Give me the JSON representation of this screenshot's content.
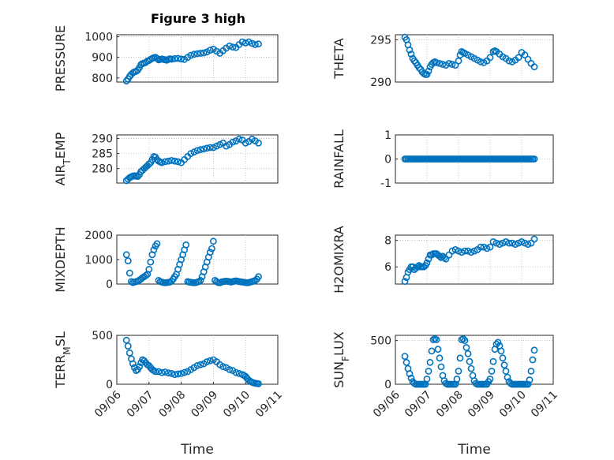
{
  "title": "Figure 3 high",
  "marker_color": "#0072BD",
  "chart_data": [
    {
      "type": "scatter",
      "ylabel": "PRESSURE",
      "xlabel": "",
      "ylim": [
        780,
        1010
      ],
      "yticks": [
        {
          "v": 800,
          "l": "800"
        },
        {
          "v": 900,
          "l": "900"
        },
        {
          "v": 1000,
          "l": "1000"
        }
      ],
      "xlim": [
        0,
        5
      ],
      "x": [
        0.3,
        0.35,
        0.4,
        0.45,
        0.5,
        0.55,
        0.6,
        0.65,
        0.7,
        0.75,
        0.8,
        0.85,
        0.9,
        0.95,
        1.0,
        1.05,
        1.1,
        1.15,
        1.2,
        1.25,
        1.3,
        1.35,
        1.4,
        1.45,
        1.5,
        1.55,
        1.6,
        1.65,
        1.7,
        1.8,
        1.9,
        2.0,
        2.1,
        2.2,
        2.3,
        2.4,
        2.5,
        2.6,
        2.7,
        2.8,
        2.9,
        3.0,
        3.1,
        3.2,
        3.3,
        3.4,
        3.5,
        3.6,
        3.7,
        3.8,
        3.9,
        4.0,
        4.1,
        4.2,
        4.3,
        4.4
      ],
      "y": [
        785,
        795,
        808,
        818,
        825,
        830,
        832,
        838,
        850,
        865,
        870,
        872,
        876,
        882,
        885,
        890,
        895,
        898,
        900,
        895,
        888,
        890,
        892,
        890,
        888,
        886,
        890,
        893,
        891,
        894,
        895,
        892,
        890,
        900,
        910,
        915,
        918,
        920,
        922,
        926,
        935,
        940,
        930,
        920,
        932,
        945,
        955,
        950,
        948,
        962,
        975,
        970,
        975,
        968,
        962,
        965
      ]
    },
    {
      "type": "scatter",
      "ylabel": "THETA",
      "xlabel": "",
      "ylim": [
        290,
        295.6
      ],
      "yticks": [
        {
          "v": 290,
          "l": "290"
        },
        {
          "v": 295,
          "l": "295"
        }
      ],
      "xlim": [
        0,
        5
      ],
      "x": [
        0.3,
        0.35,
        0.4,
        0.45,
        0.5,
        0.55,
        0.6,
        0.65,
        0.7,
        0.75,
        0.8,
        0.85,
        0.9,
        0.95,
        1.0,
        1.05,
        1.1,
        1.15,
        1.2,
        1.25,
        1.3,
        1.4,
        1.5,
        1.6,
        1.7,
        1.8,
        1.9,
        2.0,
        2.05,
        2.1,
        2.15,
        2.2,
        2.3,
        2.4,
        2.5,
        2.6,
        2.7,
        2.8,
        2.9,
        3.0,
        3.1,
        3.15,
        3.2,
        3.3,
        3.4,
        3.5,
        3.6,
        3.7,
        3.8,
        3.9,
        4.0,
        4.1,
        4.2,
        4.3,
        4.4
      ],
      "y": [
        295.3,
        295.0,
        294.4,
        293.8,
        293.3,
        292.8,
        292.5,
        292.3,
        292.0,
        291.7,
        291.5,
        291.2,
        291.0,
        290.9,
        290.9,
        291.3,
        291.8,
        292.1,
        292.3,
        292.4,
        292.3,
        292.2,
        292.1,
        292.0,
        292.2,
        292.1,
        292.0,
        292.5,
        293.2,
        293.6,
        293.5,
        293.4,
        293.2,
        293.0,
        292.8,
        292.6,
        292.4,
        292.3,
        292.5,
        292.9,
        293.6,
        293.7,
        293.6,
        293.3,
        293.0,
        292.8,
        292.5,
        292.4,
        292.6,
        292.9,
        293.5,
        293.2,
        292.7,
        292.2,
        291.8
      ]
    },
    {
      "type": "scatter",
      "ylabel": "AIR_TEMP",
      "xlabel": "",
      "ylim": [
        275.2,
        291.2
      ],
      "yticks": [
        {
          "v": 280,
          "l": "280"
        },
        {
          "v": 285,
          "l": "285"
        },
        {
          "v": 290,
          "l": "290"
        }
      ],
      "xlim": [
        0,
        5
      ],
      "x": [
        0.3,
        0.35,
        0.4,
        0.45,
        0.5,
        0.55,
        0.6,
        0.65,
        0.7,
        0.75,
        0.8,
        0.85,
        0.9,
        0.95,
        1.0,
        1.05,
        1.1,
        1.15,
        1.2,
        1.25,
        1.3,
        1.35,
        1.4,
        1.5,
        1.6,
        1.7,
        1.8,
        1.9,
        2.0,
        2.1,
        2.2,
        2.3,
        2.4,
        2.5,
        2.6,
        2.7,
        2.8,
        2.9,
        3.0,
        3.1,
        3.2,
        3.3,
        3.4,
        3.5,
        3.6,
        3.7,
        3.8,
        3.9,
        4.0,
        4.1,
        4.2,
        4.3,
        4.4
      ],
      "y": [
        276.0,
        276.5,
        277.0,
        277.3,
        277.5,
        277.6,
        277.5,
        277.4,
        278.0,
        279.0,
        279.5,
        280.0,
        280.5,
        281.0,
        281.5,
        282.0,
        283.0,
        284.0,
        283.8,
        283.0,
        282.5,
        282.2,
        282.0,
        282.3,
        282.5,
        282.7,
        282.5,
        282.3,
        282.0,
        283.0,
        284.0,
        285.0,
        285.5,
        286.0,
        286.3,
        286.5,
        286.8,
        287.0,
        287.0,
        287.5,
        288.0,
        288.5,
        287.5,
        288.0,
        288.8,
        289.2,
        289.8,
        289.5,
        288.5,
        289.0,
        289.8,
        289.2,
        288.5
      ]
    },
    {
      "type": "scatter",
      "ylabel": "RAINFALL",
      "xlabel": "",
      "ylim": [
        -1,
        1
      ],
      "yticks": [
        {
          "v": -1,
          "l": "-1"
        },
        {
          "v": 0,
          "l": "0"
        },
        {
          "v": 1,
          "l": "1"
        }
      ],
      "xlim": [
        0,
        5
      ],
      "x": [
        0.3,
        0.35,
        0.4,
        0.45,
        0.5,
        0.55,
        0.6,
        0.65,
        0.7,
        0.75,
        0.8,
        0.85,
        0.9,
        0.95,
        1.0,
        1.05,
        1.1,
        1.15,
        1.2,
        1.25,
        1.3,
        1.35,
        1.4,
        1.45,
        1.5,
        1.55,
        1.6,
        1.65,
        1.7,
        1.75,
        1.8,
        1.85,
        1.9,
        1.95,
        2.0,
        2.05,
        2.1,
        2.15,
        2.2,
        2.25,
        2.3,
        2.35,
        2.4,
        2.45,
        2.5,
        2.55,
        2.6,
        2.65,
        2.7,
        2.75,
        2.8,
        2.85,
        2.9,
        2.95,
        3.0,
        3.05,
        3.1,
        3.15,
        3.2,
        3.25,
        3.3,
        3.35,
        3.4,
        3.45,
        3.5,
        3.55,
        3.6,
        3.65,
        3.7,
        3.75,
        3.8,
        3.85,
        3.9,
        3.95,
        4.0,
        4.05,
        4.1,
        4.15,
        4.2,
        4.25,
        4.3,
        4.35,
        4.4
      ],
      "y": [
        0,
        0,
        0,
        0,
        0,
        0,
        0,
        0,
        0,
        0,
        0,
        0,
        0,
        0,
        0,
        0,
        0,
        0,
        0,
        0,
        0,
        0,
        0,
        0,
        0,
        0,
        0,
        0,
        0,
        0,
        0,
        0,
        0,
        0,
        0,
        0,
        0,
        0,
        0,
        0,
        0,
        0,
        0,
        0,
        0,
        0,
        0,
        0,
        0,
        0,
        0,
        0,
        0,
        0,
        0,
        0,
        0,
        0,
        0,
        0,
        0,
        0,
        0,
        0,
        0,
        0,
        0,
        0,
        0,
        0,
        0,
        0,
        0,
        0,
        0,
        0,
        0,
        0,
        0,
        0,
        0,
        0,
        0
      ]
    },
    {
      "type": "scatter",
      "ylabel": "MIXDEPTH",
      "xlabel": "",
      "ylim": [
        0,
        2000
      ],
      "yticks": [
        {
          "v": 0,
          "l": "0"
        },
        {
          "v": 1000,
          "l": "1000"
        },
        {
          "v": 2000,
          "l": "2000"
        }
      ],
      "xlim": [
        0,
        5
      ],
      "x": [
        0.3,
        0.35,
        0.4,
        0.45,
        0.5,
        0.55,
        0.6,
        0.65,
        0.7,
        0.75,
        0.8,
        0.85,
        0.9,
        0.95,
        1.0,
        1.05,
        1.1,
        1.15,
        1.2,
        1.25,
        1.3,
        1.35,
        1.4,
        1.45,
        1.5,
        1.55,
        1.6,
        1.65,
        1.7,
        1.75,
        1.8,
        1.85,
        1.9,
        1.95,
        2.0,
        2.05,
        2.1,
        2.15,
        2.2,
        2.25,
        2.3,
        2.35,
        2.4,
        2.45,
        2.5,
        2.55,
        2.6,
        2.65,
        2.7,
        2.75,
        2.8,
        2.85,
        2.9,
        2.95,
        3.0,
        3.05,
        3.1,
        3.15,
        3.2,
        3.25,
        3.3,
        3.35,
        3.4,
        3.45,
        3.5,
        3.55,
        3.6,
        3.65,
        3.7,
        3.75,
        3.8,
        3.85,
        3.9,
        3.95,
        4.0,
        4.05,
        4.1,
        4.15,
        4.2,
        4.25,
        4.3,
        4.35,
        4.4
      ],
      "y": [
        1200,
        950,
        450,
        100,
        60,
        80,
        100,
        120,
        160,
        200,
        260,
        300,
        350,
        400,
        600,
        900,
        1200,
        1400,
        1550,
        1650,
        150,
        100,
        80,
        60,
        50,
        60,
        70,
        80,
        120,
        200,
        300,
        400,
        600,
        800,
        1000,
        1200,
        1400,
        1600,
        100,
        80,
        70,
        60,
        50,
        60,
        80,
        100,
        150,
        300,
        500,
        700,
        900,
        1100,
        1300,
        1450,
        1750,
        150,
        100,
        60,
        50,
        80,
        100,
        110,
        120,
        110,
        100,
        80,
        100,
        120,
        130,
        120,
        100,
        90,
        80,
        70,
        60,
        50,
        60,
        80,
        100,
        120,
        150,
        200,
        300
      ]
    },
    {
      "type": "scatter",
      "ylabel": "H2OMIXRA",
      "xlabel": "",
      "ylim": [
        4.7,
        8.4
      ],
      "yticks": [
        {
          "v": 6,
          "l": "6"
        },
        {
          "v": 8,
          "l": "8"
        }
      ],
      "xlim": [
        0,
        5
      ],
      "x": [
        0.3,
        0.35,
        0.4,
        0.45,
        0.5,
        0.55,
        0.6,
        0.65,
        0.7,
        0.75,
        0.8,
        0.85,
        0.9,
        0.95,
        1.0,
        1.05,
        1.1,
        1.15,
        1.2,
        1.25,
        1.3,
        1.35,
        1.4,
        1.45,
        1.5,
        1.55,
        1.6,
        1.7,
        1.8,
        1.9,
        2.0,
        2.1,
        2.2,
        2.3,
        2.4,
        2.5,
        2.6,
        2.7,
        2.8,
        2.9,
        3.0,
        3.1,
        3.2,
        3.3,
        3.4,
        3.5,
        3.6,
        3.7,
        3.8,
        3.9,
        4.0,
        4.1,
        4.2,
        4.3,
        4.4
      ],
      "y": [
        4.9,
        5.2,
        5.6,
        5.8,
        6.0,
        6.0,
        5.8,
        5.9,
        6.0,
        6.1,
        6.0,
        6.0,
        6.0,
        6.1,
        6.3,
        6.6,
        6.9,
        6.9,
        7.0,
        7.0,
        7.0,
        6.9,
        6.8,
        6.7,
        6.8,
        6.7,
        6.6,
        6.9,
        7.2,
        7.3,
        7.2,
        7.1,
        7.2,
        7.2,
        7.1,
        7.2,
        7.3,
        7.5,
        7.5,
        7.4,
        7.5,
        7.9,
        7.8,
        7.7,
        7.8,
        7.9,
        7.8,
        7.8,
        7.7,
        7.8,
        7.9,
        7.8,
        7.7,
        7.8,
        8.1
      ]
    },
    {
      "type": "scatter",
      "ylabel": "TERR_MSL",
      "xlabel": "Time",
      "ylim": [
        0,
        500
      ],
      "yticks": [
        {
          "v": 0,
          "l": "0"
        },
        {
          "v": 500,
          "l": "500"
        }
      ],
      "xlim": [
        0,
        5
      ],
      "xticks": [
        {
          "v": 0,
          "l": "09/06"
        },
        {
          "v": 1,
          "l": "09/07"
        },
        {
          "v": 2,
          "l": "09/08"
        },
        {
          "v": 3,
          "l": "09/09"
        },
        {
          "v": 4,
          "l": "09/10"
        },
        {
          "v": 5,
          "l": "09/11"
        }
      ],
      "x": [
        0.3,
        0.35,
        0.4,
        0.45,
        0.5,
        0.55,
        0.6,
        0.65,
        0.7,
        0.75,
        0.8,
        0.85,
        0.9,
        0.95,
        1.0,
        1.05,
        1.1,
        1.15,
        1.2,
        1.3,
        1.4,
        1.5,
        1.6,
        1.7,
        1.8,
        1.9,
        2.0,
        2.1,
        2.2,
        2.3,
        2.4,
        2.5,
        2.6,
        2.7,
        2.8,
        2.9,
        3.0,
        3.1,
        3.2,
        3.3,
        3.4,
        3.5,
        3.6,
        3.7,
        3.8,
        3.9,
        3.95,
        4.0,
        4.05,
        4.1,
        4.15,
        4.2,
        4.25,
        4.3,
        4.35,
        4.4
      ],
      "y": [
        450,
        390,
        320,
        260,
        210,
        170,
        140,
        150,
        180,
        220,
        250,
        240,
        220,
        200,
        190,
        170,
        150,
        140,
        130,
        130,
        120,
        125,
        115,
        110,
        100,
        105,
        110,
        120,
        130,
        150,
        170,
        190,
        200,
        210,
        230,
        240,
        250,
        230,
        200,
        180,
        170,
        150,
        140,
        120,
        110,
        100,
        90,
        80,
        60,
        40,
        30,
        20,
        15,
        10,
        8,
        5
      ]
    },
    {
      "type": "scatter",
      "ylabel": "SUN_FLUX",
      "xlabel": "Time",
      "ylim": [
        0,
        560
      ],
      "yticks": [
        {
          "v": 0,
          "l": "0"
        },
        {
          "v": 500,
          "l": "500"
        }
      ],
      "xlim": [
        0,
        5
      ],
      "xticks": [
        {
          "v": 0,
          "l": "09/06"
        },
        {
          "v": 1,
          "l": "09/07"
        },
        {
          "v": 2,
          "l": "09/08"
        },
        {
          "v": 3,
          "l": "09/09"
        },
        {
          "v": 4,
          "l": "09/10"
        },
        {
          "v": 5,
          "l": "09/11"
        }
      ],
      "x": [
        0.3,
        0.35,
        0.4,
        0.45,
        0.5,
        0.55,
        0.6,
        0.65,
        0.7,
        0.75,
        0.8,
        0.85,
        0.9,
        0.95,
        1.0,
        1.05,
        1.1,
        1.15,
        1.2,
        1.25,
        1.3,
        1.35,
        1.4,
        1.45,
        1.5,
        1.55,
        1.6,
        1.65,
        1.7,
        1.75,
        1.8,
        1.85,
        1.9,
        1.95,
        2.0,
        2.05,
        2.1,
        2.15,
        2.2,
        2.25,
        2.3,
        2.35,
        2.4,
        2.45,
        2.5,
        2.55,
        2.6,
        2.65,
        2.7,
        2.75,
        2.8,
        2.85,
        2.9,
        2.95,
        3.0,
        3.05,
        3.1,
        3.15,
        3.2,
        3.25,
        3.3,
        3.35,
        3.4,
        3.45,
        3.5,
        3.55,
        3.6,
        3.65,
        3.7,
        3.75,
        3.8,
        3.85,
        3.9,
        3.95,
        4.0,
        4.05,
        4.1,
        4.15,
        4.2,
        4.25,
        4.3,
        4.35,
        4.4
      ],
      "y": [
        320,
        250,
        180,
        120,
        70,
        30,
        10,
        0,
        0,
        0,
        0,
        0,
        0,
        0,
        60,
        150,
        250,
        380,
        510,
        520,
        510,
        400,
        300,
        200,
        100,
        40,
        10,
        0,
        0,
        0,
        0,
        0,
        0,
        60,
        150,
        300,
        510,
        520,
        500,
        420,
        350,
        260,
        180,
        100,
        40,
        10,
        0,
        0,
        0,
        0,
        0,
        0,
        0,
        30,
        60,
        150,
        260,
        400,
        460,
        480,
        440,
        380,
        300,
        220,
        150,
        80,
        30,
        10,
        0,
        0,
        0,
        0,
        0,
        0,
        0,
        0,
        0,
        0,
        0,
        50,
        150,
        280,
        390
      ]
    }
  ]
}
